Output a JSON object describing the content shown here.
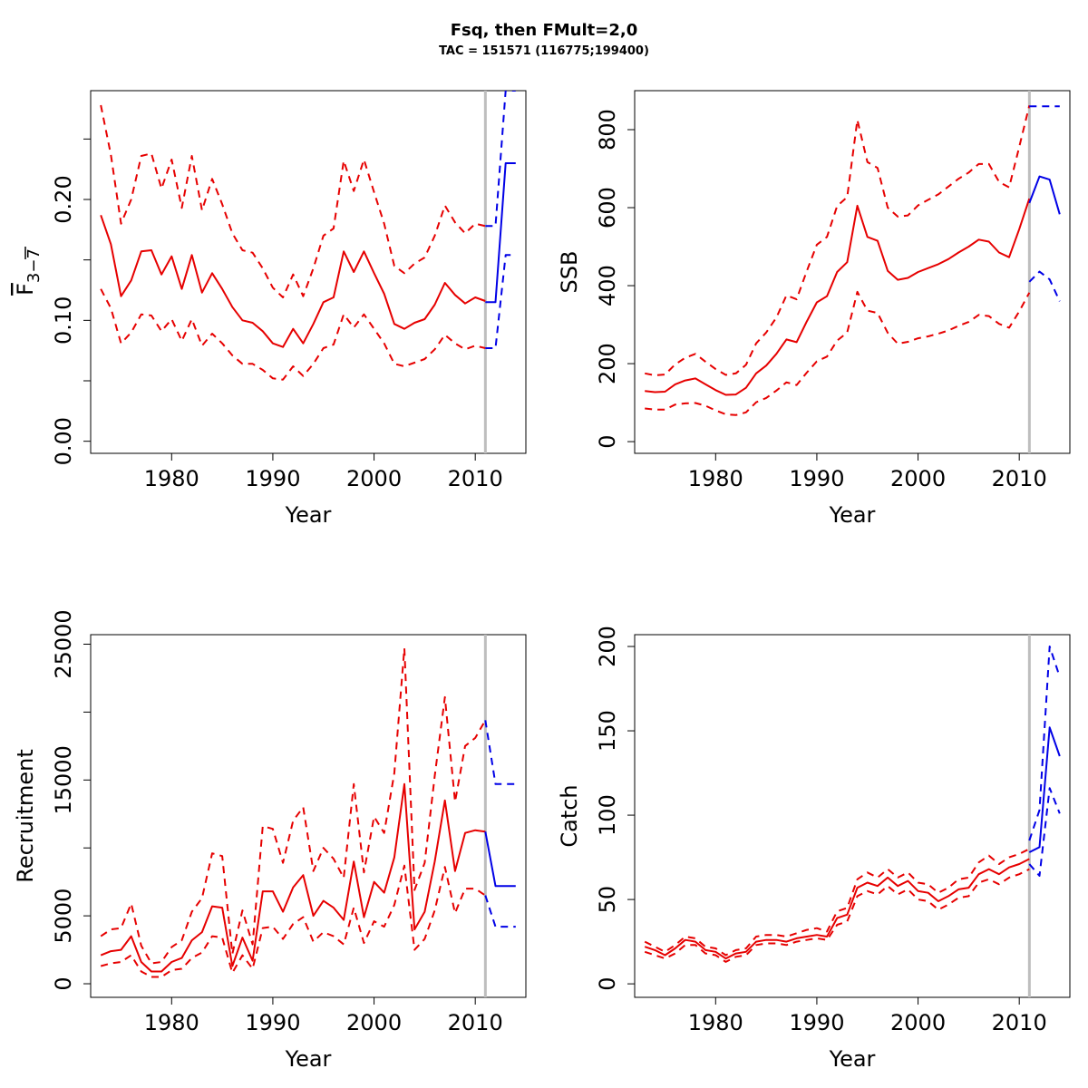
{
  "title": "Fsq, then FMult=2,0",
  "subtitle": "TAC = 151571 (116775;199400)",
  "colors": {
    "historic": "#e60000",
    "forecast": "#0000e6",
    "vline": "#bebebe"
  },
  "chart_data": [
    {
      "type": "line",
      "ylabel_main": "F",
      "ylabel_sub": "3−7",
      "xlabel": "Year",
      "xlim": [
        1972,
        2015
      ],
      "ylim": [
        -0.01,
        0.29
      ],
      "xticks": [
        1980,
        1990,
        2000,
        2010
      ],
      "yticks": [
        0,
        0.05,
        0.1,
        0.15,
        0.2,
        0.25
      ],
      "yticklabels": [
        "0.00",
        "",
        "0.10",
        "",
        "0.20",
        ""
      ],
      "vline": 2011,
      "historic": {
        "x": [
          1973,
          1974,
          1975,
          1976,
          1977,
          1978,
          1979,
          1980,
          1981,
          1982,
          1983,
          1984,
          1985,
          1986,
          1987,
          1988,
          1989,
          1990,
          1991,
          1992,
          1993,
          1994,
          1995,
          1996,
          1997,
          1998,
          1999,
          2000,
          2001,
          2002,
          2003,
          2004,
          2005,
          2006,
          2007,
          2008,
          2009,
          2010,
          2011
        ],
        "mid": [
          0.187,
          0.163,
          0.12,
          0.133,
          0.157,
          0.158,
          0.138,
          0.153,
          0.126,
          0.154,
          0.123,
          0.139,
          0.126,
          0.111,
          0.1,
          0.098,
          0.091,
          0.081,
          0.078,
          0.093,
          0.081,
          0.097,
          0.115,
          0.119,
          0.157,
          0.14,
          0.157,
          0.139,
          0.122,
          0.097,
          0.093,
          0.098,
          0.101,
          0.113,
          0.131,
          0.121,
          0.114,
          0.119,
          0.116
        ],
        "upper": [
          0.278,
          0.237,
          0.18,
          0.2,
          0.236,
          0.238,
          0.209,
          0.233,
          0.193,
          0.236,
          0.191,
          0.217,
          0.196,
          0.172,
          0.158,
          0.156,
          0.143,
          0.127,
          0.119,
          0.138,
          0.12,
          0.143,
          0.17,
          0.176,
          0.232,
          0.207,
          0.233,
          0.206,
          0.18,
          0.145,
          0.139,
          0.147,
          0.152,
          0.17,
          0.195,
          0.181,
          0.172,
          0.18,
          0.178
        ],
        "lower": [
          0.126,
          0.11,
          0.081,
          0.09,
          0.105,
          0.104,
          0.091,
          0.101,
          0.083,
          0.101,
          0.079,
          0.089,
          0.081,
          0.071,
          0.064,
          0.064,
          0.059,
          0.052,
          0.051,
          0.062,
          0.054,
          0.064,
          0.077,
          0.08,
          0.105,
          0.094,
          0.105,
          0.093,
          0.081,
          0.064,
          0.062,
          0.065,
          0.068,
          0.076,
          0.088,
          0.081,
          0.076,
          0.079,
          0.077
        ]
      },
      "forecast": {
        "x": [
          2011,
          2012,
          2013,
          2014
        ],
        "mid": [
          0.115,
          0.115,
          0.23,
          0.23
        ],
        "upper": [
          0.178,
          0.178,
          0.29,
          0.29
        ],
        "lower": [
          0.077,
          0.077,
          0.154,
          0.154
        ]
      }
    },
    {
      "type": "line",
      "ylabel_main": "SSB",
      "xlabel": "Year",
      "xlim": [
        1972,
        2015
      ],
      "ylim": [
        -30,
        900
      ],
      "xticks": [
        1980,
        1990,
        2000,
        2010
      ],
      "yticks": [
        0,
        200,
        400,
        600,
        800
      ],
      "yticklabels": [
        "0",
        "200",
        "400",
        "600",
        "800"
      ],
      "vline": 2011,
      "historic": {
        "x": [
          1973,
          1974,
          1975,
          1976,
          1977,
          1978,
          1979,
          1980,
          1981,
          1982,
          1983,
          1984,
          1985,
          1986,
          1987,
          1988,
          1989,
          1990,
          1991,
          1992,
          1993,
          1994,
          1995,
          1996,
          1997,
          1998,
          1999,
          2000,
          2001,
          2002,
          2003,
          2004,
          2005,
          2006,
          2007,
          2008,
          2009,
          2010,
          2011
        ],
        "mid": [
          130,
          127,
          128,
          147,
          157,
          162,
          147,
          132,
          120,
          121,
          138,
          175,
          195,
          225,
          262,
          255,
          308,
          357,
          373,
          435,
          460,
          605,
          525,
          515,
          438,
          415,
          420,
          435,
          445,
          455,
          468,
          485,
          500,
          518,
          513,
          485,
          473,
          545,
          623
        ],
        "upper": [
          175,
          170,
          172,
          198,
          215,
          225,
          205,
          186,
          171,
          175,
          197,
          252,
          280,
          318,
          375,
          365,
          437,
          505,
          525,
          604,
          627,
          825,
          717,
          702,
          600,
          577,
          580,
          606,
          620,
          634,
          654,
          674,
          690,
          712,
          712,
          666,
          652,
          756,
          862
        ],
        "lower": [
          85,
          82,
          82,
          95,
          98,
          99,
          92,
          80,
          70,
          68,
          75,
          101,
          112,
          131,
          152,
          145,
          177,
          206,
          218,
          259,
          280,
          384,
          336,
          330,
          279,
          251,
          256,
          265,
          270,
          277,
          285,
          297,
          307,
          325,
          322,
          302,
          292,
          334,
          382
        ]
      },
      "forecast": {
        "x": [
          2011,
          2012,
          2013,
          2014
        ],
        "mid": [
          612,
          680,
          672,
          583
        ],
        "upper": [
          860,
          860,
          860,
          860
        ],
        "lower": [
          410,
          436,
          416,
          360
        ]
      }
    },
    {
      "type": "line",
      "ylabel_main": "Recruitment",
      "xlabel": "Year",
      "xlim": [
        1972,
        2015
      ],
      "ylim": [
        -1000,
        25700
      ],
      "xticks": [
        1980,
        1990,
        2000,
        2010
      ],
      "yticks": [
        0,
        5000,
        10000,
        15000,
        20000,
        25000
      ],
      "yticklabels": [
        "0",
        "5000",
        "",
        "15000",
        "",
        "25000"
      ],
      "vline": 2011,
      "historic": {
        "x": [
          1973,
          1974,
          1975,
          1976,
          1977,
          1978,
          1979,
          1980,
          1981,
          1982,
          1983,
          1984,
          1985,
          1986,
          1987,
          1988,
          1989,
          1990,
          1991,
          1992,
          1993,
          1994,
          1995,
          1996,
          1997,
          1998,
          1999,
          2000,
          2001,
          2002,
          2003,
          2004,
          2005,
          2006,
          2007,
          2008,
          2009,
          2010,
          2011
        ],
        "mid": [
          2100,
          2400,
          2500,
          3500,
          1600,
          900,
          900,
          1600,
          1900,
          3200,
          3800,
          5700,
          5600,
          1300,
          3400,
          1700,
          6800,
          6800,
          5300,
          7100,
          8000,
          5000,
          6100,
          5600,
          4700,
          9000,
          4900,
          7500,
          6700,
          9300,
          14700,
          4000,
          5300,
          9000,
          13500,
          8300,
          11100,
          11300,
          11200
        ],
        "upper": [
          3500,
          4000,
          4100,
          5900,
          2800,
          1500,
          1600,
          2700,
          3200,
          5300,
          6300,
          9600,
          9400,
          2200,
          5400,
          2900,
          11600,
          11400,
          8900,
          12000,
          13000,
          8300,
          10000,
          9200,
          7800,
          14700,
          8200,
          12300,
          11100,
          15500,
          24700,
          6900,
          8900,
          15300,
          21100,
          13400,
          17500,
          18100,
          19400
        ]
      },
      "historic_lower": [
        1300,
        1500,
        1600,
        2100,
        900,
        500,
        500,
        1000,
        1100,
        1900,
        2300,
        3500,
        3400,
        800,
        2100,
        1100,
        4100,
        4200,
        3300,
        4400,
        4900,
        3100,
        3800,
        3500,
        2900,
        5600,
        3000,
        4600,
        4200,
        5800,
        8700,
        2500,
        3300,
        5400,
        8600,
        5200,
        7000,
        7000,
        6500
      ],
      "forecast": {
        "x": [
          2011,
          2012,
          2013,
          2014
        ],
        "mid": [
          11200,
          7200,
          7200,
          7200
        ],
        "upper": [
          19400,
          14700,
          14700,
          14700
        ],
        "lower": [
          6500,
          4200,
          4200,
          4200
        ]
      }
    },
    {
      "type": "line",
      "ylabel_main": "Catch",
      "xlabel": "Year",
      "xlim": [
        1972,
        2015
      ],
      "ylim": [
        -8,
        207
      ],
      "xticks": [
        1980,
        1990,
        2000,
        2010
      ],
      "yticks": [
        0,
        50,
        100,
        150,
        200
      ],
      "yticklabels": [
        "0",
        "50",
        "100",
        "150",
        "200"
      ],
      "vline": 2011,
      "historic": {
        "x": [
          1973,
          1974,
          1975,
          1976,
          1977,
          1978,
          1979,
          1980,
          1981,
          1982,
          1983,
          1984,
          1985,
          1986,
          1987,
          1988,
          1989,
          1990,
          1991,
          1992,
          1993,
          1994,
          1995,
          1996,
          1997,
          1998,
          1999,
          2000,
          2001,
          2002,
          2003,
          2004,
          2005,
          2006,
          2007,
          2008,
          2009,
          2010,
          2011
        ],
        "mid": [
          22,
          20,
          17,
          21,
          26,
          25,
          20,
          19,
          15,
          18,
          19,
          25,
          26,
          26,
          25,
          27,
          28,
          29,
          28,
          39,
          41,
          57,
          60,
          58,
          63,
          58,
          61,
          55,
          54,
          49,
          52,
          56,
          57,
          65,
          68,
          65,
          69,
          71,
          74
        ],
        "upper": [
          25,
          22,
          19,
          23,
          28,
          27,
          22,
          21,
          17,
          20,
          21,
          28,
          29,
          29,
          28,
          30,
          32,
          33,
          31,
          43,
          45,
          62,
          66,
          63,
          68,
          63,
          66,
          60,
          59,
          54,
          57,
          62,
          63,
          72,
          76,
          71,
          75,
          77,
          80
        ],
        "lower": [
          19,
          17,
          15,
          18,
          23,
          23,
          18,
          17,
          13,
          16,
          17,
          23,
          24,
          24,
          23,
          25,
          26,
          27,
          26,
          35,
          37,
          52,
          55,
          53,
          58,
          53,
          56,
          50,
          49,
          44,
          47,
          51,
          52,
          60,
          62,
          59,
          63,
          65,
          68
        ]
      },
      "forecast": {
        "x": [
          2011,
          2012,
          2013,
          2014
        ],
        "mid": [
          78,
          81,
          152,
          135
        ],
        "upper": [
          85,
          103,
          200,
          182
        ],
        "lower": [
          71,
          64,
          116,
          101
        ]
      }
    }
  ]
}
